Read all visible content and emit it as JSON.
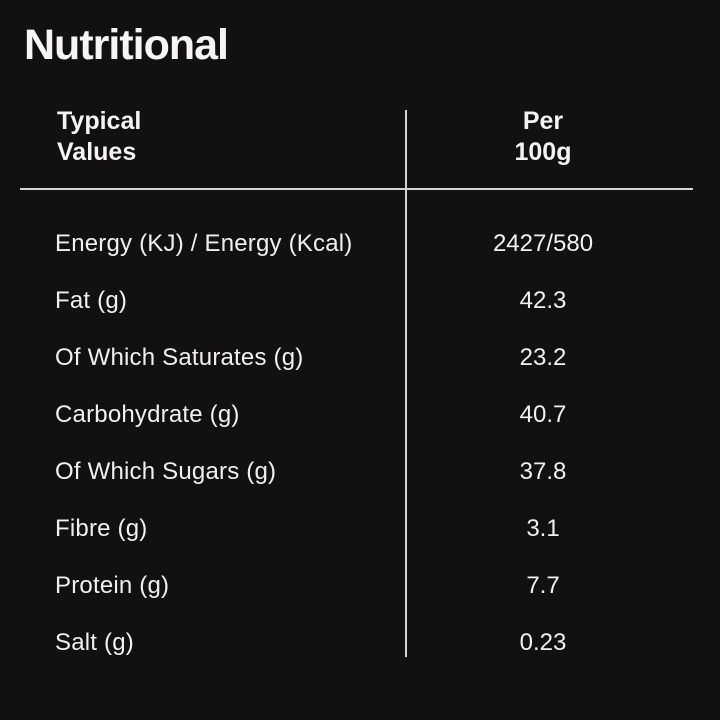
{
  "title": "Nutritional",
  "table": {
    "header": {
      "typical_line1": "Typical",
      "typical_line2": "Values",
      "per_line1": "Per",
      "per_line2": "100g"
    },
    "rows": [
      {
        "label": "Energy (KJ) / Energy (Kcal)",
        "value": "2427/580"
      },
      {
        "label": "Fat (g)",
        "value": "42.3"
      },
      {
        "label": "Of Which Saturates (g)",
        "value": "23.2"
      },
      {
        "label": "Carbohydrate (g)",
        "value": "40.7"
      },
      {
        "label": "Of Which Sugars (g)",
        "value": "37.8"
      },
      {
        "label": "Fibre (g)",
        "value": "3.1"
      },
      {
        "label": "Protein (g)",
        "value": "7.7"
      },
      {
        "label": "Salt (g)",
        "value": "0.23"
      }
    ]
  },
  "colors": {
    "background": "#131110",
    "text": "#f2f0ed",
    "rule": "#d6d4d1"
  }
}
